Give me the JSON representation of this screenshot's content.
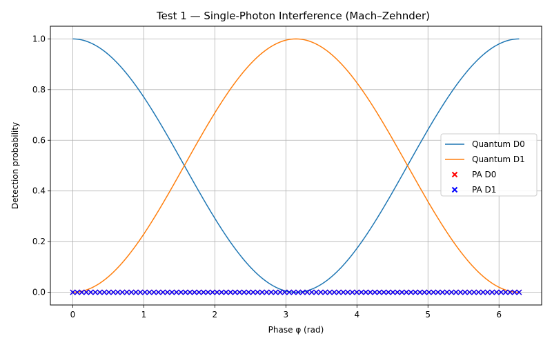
{
  "chart_data": {
    "type": "line",
    "title": "Test 1 — Single-Photon Interference (Mach–Zehnder)",
    "xlabel": "Phase φ (rad)",
    "ylabel": "Detection probability",
    "xlim": [
      -0.315,
      6.6
    ],
    "ylim": [
      -0.05,
      1.05
    ],
    "xticks": [
      "0",
      "1",
      "2",
      "3",
      "4",
      "5",
      "6"
    ],
    "yticks": [
      "0.0",
      "0.2",
      "0.4",
      "0.6",
      "0.8",
      "1.0"
    ],
    "grid": true,
    "legend_position": "center-right",
    "phase_range": [
      0,
      6.283
    ],
    "series": [
      {
        "name": "Quantum D0",
        "kind": "line",
        "color": "#1f77b4",
        "formula": "cos²(φ/2)"
      },
      {
        "name": "Quantum D1",
        "kind": "line",
        "color": "#ff7f0e",
        "formula": "sin²(φ/2)"
      },
      {
        "name": "PA D0",
        "kind": "scatter",
        "marker": "x",
        "color": "#ff0000",
        "value": 0.0,
        "points": 100
      },
      {
        "name": "PA D1",
        "kind": "scatter",
        "marker": "x",
        "color": "#0000ff",
        "value": 0.0,
        "points": 100
      }
    ]
  }
}
